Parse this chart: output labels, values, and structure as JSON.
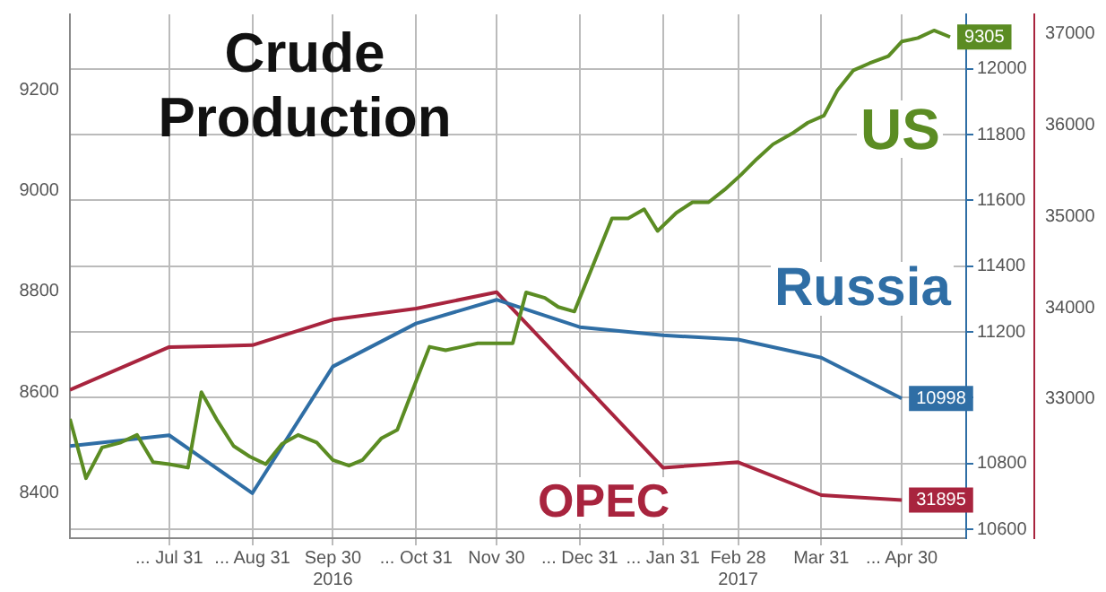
{
  "chart_data": {
    "type": "line",
    "title": "Crude Production",
    "xlim": [
      "2016-06-24",
      "2017-05-24"
    ],
    "xticks": [
      {
        "value": "2016-07-31",
        "label": "... Jul 31"
      },
      {
        "value": "2016-08-31",
        "label": "... Aug 31"
      },
      {
        "value": "2016-09-30",
        "label": "Sep 30\n2016"
      },
      {
        "value": "2016-10-31",
        "label": "... Oct 31"
      },
      {
        "value": "2016-11-30",
        "label": "Nov 30"
      },
      {
        "value": "2016-12-31",
        "label": "... Dec 31"
      },
      {
        "value": "2017-01-31",
        "label": "... Jan 31"
      },
      {
        "value": "2017-02-28",
        "label": "Feb 28\n2017"
      },
      {
        "value": "2017-03-31",
        "label": "Mar 31"
      },
      {
        "value": "2017-04-30",
        "label": "... Apr 30"
      }
    ],
    "ylim": [
      8310,
      9350
    ],
    "yticks": [
      8400,
      8600,
      8800,
      9000,
      9200
    ],
    "y2lim": [
      10573,
      12166
    ],
    "y2ticks": [
      10600,
      10800,
      {
        "value": 11000,
        "label": null
      },
      11200,
      11400,
      11600,
      11800,
      12000
    ],
    "y3lim": [
      31479,
      37209
    ],
    "y3ticks": [
      33000,
      34000,
      35000,
      36000,
      37000
    ],
    "grid": true,
    "series": [
      {
        "name": "US",
        "color": "#5b8c23",
        "axis": "y",
        "x": [
          "2016-06-24",
          "2016-06-30",
          "2016-07-06",
          "2016-07-13",
          "2016-07-19",
          "2016-07-25",
          "2016-07-31",
          "2016-08-07",
          "2016-08-12",
          "2016-08-18",
          "2016-08-24",
          "2016-08-30",
          "2016-09-05",
          "2016-09-11",
          "2016-09-17",
          "2016-09-24",
          "2016-09-30",
          "2016-10-06",
          "2016-10-11",
          "2016-10-18",
          "2016-10-24",
          "2016-10-30",
          "2016-11-05",
          "2016-11-11",
          "2016-11-17",
          "2016-11-23",
          "2016-11-29",
          "2016-12-06",
          "2016-12-11",
          "2016-12-18",
          "2016-12-23",
          "2016-12-29",
          "2017-01-12",
          "2017-01-18",
          "2017-01-24",
          "2017-01-29",
          "2017-02-05",
          "2017-02-11",
          "2017-02-17",
          "2017-02-23",
          "2017-03-01",
          "2017-03-07",
          "2017-03-13",
          "2017-03-20",
          "2017-03-26",
          "2017-04-01",
          "2017-04-06",
          "2017-04-12",
          "2017-04-18",
          "2017-04-25",
          "2017-04-30",
          "2017-05-06",
          "2017-05-12",
          "2017-05-18"
        ],
        "values": [
          8547,
          8429,
          8490,
          8500,
          8515,
          8461,
          8457,
          8450,
          8600,
          8543,
          8493,
          8472,
          8457,
          8497,
          8515,
          8500,
          8465,
          8454,
          8465,
          8508,
          8525,
          8608,
          8690,
          8683,
          8690,
          8697,
          8697,
          8697,
          8798,
          8787,
          8769,
          8760,
          8945,
          8945,
          8963,
          8920,
          8956,
          8977,
          8977,
          9002,
          9031,
          9063,
          9092,
          9113,
          9135,
          9149,
          9199,
          9239,
          9253,
          9267,
          9296,
          9303,
          9318,
          9305
        ],
        "value_labels": [
          null,
          null,
          null,
          null,
          null,
          null,
          null,
          null,
          null,
          null,
          null,
          null,
          null,
          null,
          null,
          null,
          null,
          null,
          null,
          null,
          null,
          null,
          null,
          null,
          null,
          null,
          null,
          null,
          null,
          null,
          null,
          null,
          null,
          null,
          null,
          null,
          null,
          null,
          null,
          null,
          null,
          null,
          null,
          null,
          null,
          null,
          null,
          null,
          null,
          null,
          null,
          null,
          null,
          "9305"
        ]
      },
      {
        "name": "Russia",
        "color": "#2f6ea5",
        "axis": "y2",
        "x": [
          "2016-06-24",
          "2016-07-31",
          "2016-08-31",
          "2016-09-30",
          "2016-10-31",
          "2016-11-30",
          "2016-12-31",
          "2017-01-31",
          "2017-02-28",
          "2017-03-31",
          "2017-04-30"
        ],
        "values": [
          10853,
          10886,
          10710,
          11095,
          11226,
          11298,
          11215,
          11190,
          11177,
          11122,
          10998
        ],
        "value_labels": [
          null,
          null,
          null,
          null,
          null,
          null,
          null,
          null,
          null,
          null,
          "10998"
        ]
      },
      {
        "name": "OPEC",
        "color": "#a8243e",
        "axis": "y3",
        "x": [
          "2016-06-24",
          "2016-07-31",
          "2016-08-31",
          "2016-09-30",
          "2016-10-31",
          "2016-11-30",
          "2017-01-31",
          "2017-02-28",
          "2017-03-31",
          "2017-04-30"
        ],
        "values": [
          33100,
          33570,
          33590,
          33870,
          33990,
          34170,
          32250,
          32310,
          31950,
          31895
        ],
        "value_labels": [
          null,
          null,
          null,
          null,
          null,
          null,
          null,
          null,
          null,
          "31895"
        ]
      }
    ]
  }
}
